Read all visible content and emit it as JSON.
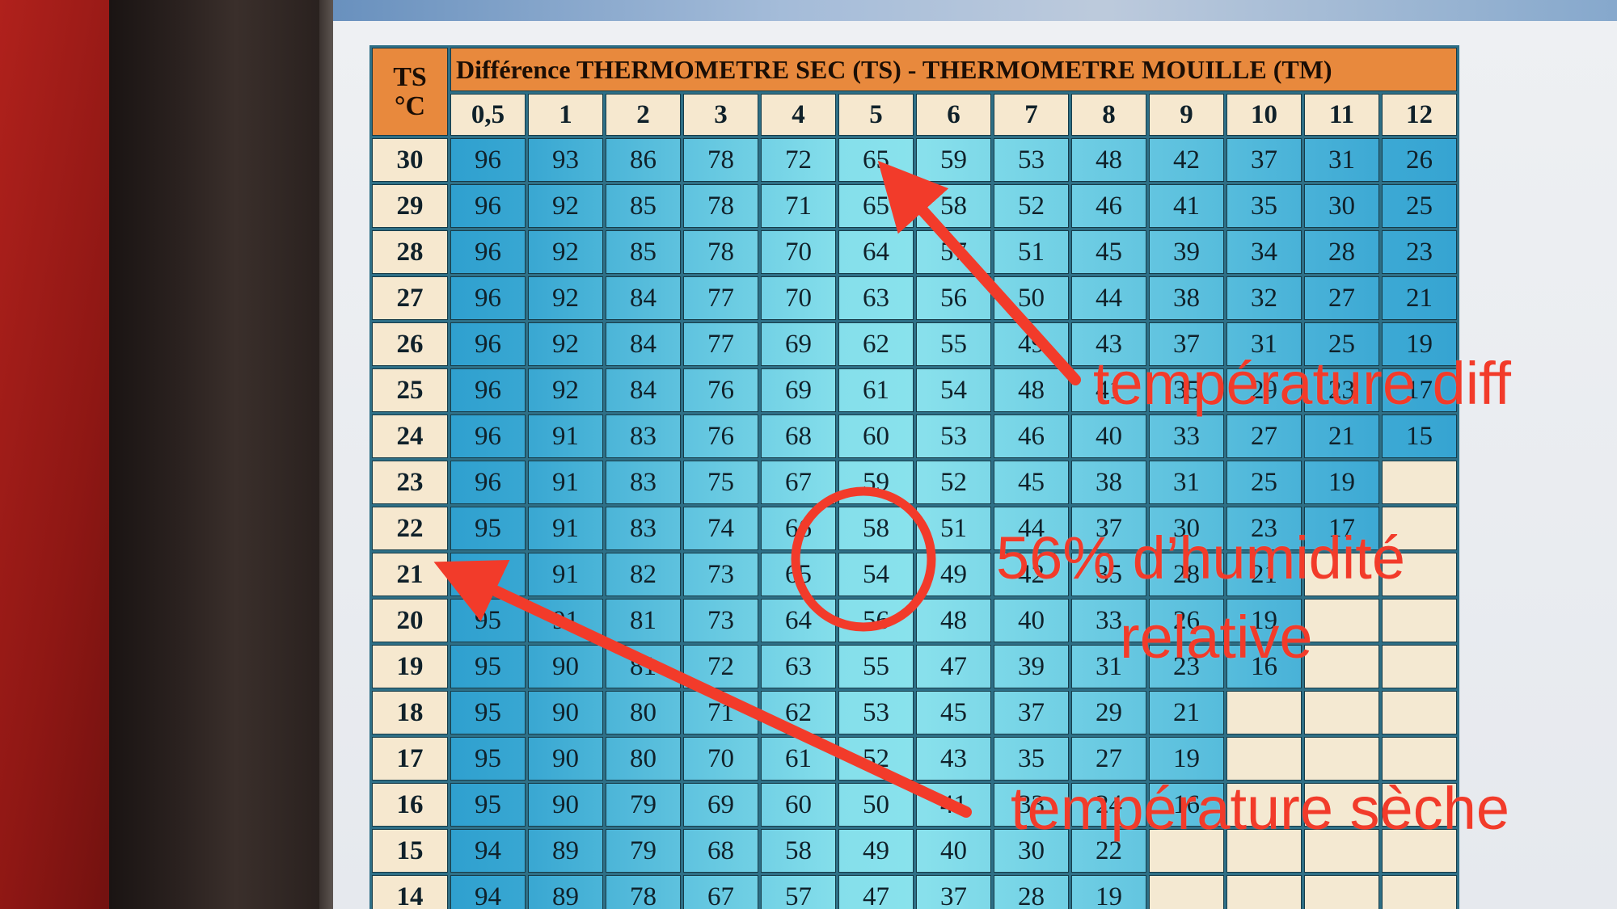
{
  "table": {
    "ts_header": [
      "TS",
      "°C"
    ],
    "diff_header": "Différence THERMOMETRE SEC (TS) - THERMOMETRE MOUILLE  (TM)",
    "columns": [
      "0,5",
      "1",
      "2",
      "3",
      "4",
      "5",
      "6",
      "7",
      "8",
      "9",
      "10",
      "11",
      "12"
    ],
    "rows": [
      {
        "ts": "30",
        "values": [
          "96",
          "93",
          "86",
          "78",
          "72",
          "65",
          "59",
          "53",
          "48",
          "42",
          "37",
          "31",
          "26"
        ]
      },
      {
        "ts": "29",
        "values": [
          "96",
          "92",
          "85",
          "78",
          "71",
          "65",
          "58",
          "52",
          "46",
          "41",
          "35",
          "30",
          "25"
        ]
      },
      {
        "ts": "28",
        "values": [
          "96",
          "92",
          "85",
          "78",
          "70",
          "64",
          "57",
          "51",
          "45",
          "39",
          "34",
          "28",
          "23"
        ]
      },
      {
        "ts": "27",
        "values": [
          "96",
          "92",
          "84",
          "77",
          "70",
          "63",
          "56",
          "50",
          "44",
          "38",
          "32",
          "27",
          "21"
        ]
      },
      {
        "ts": "26",
        "values": [
          "96",
          "92",
          "84",
          "77",
          "69",
          "62",
          "55",
          "49",
          "43",
          "37",
          "31",
          "25",
          "19"
        ]
      },
      {
        "ts": "25",
        "values": [
          "96",
          "92",
          "84",
          "76",
          "69",
          "61",
          "54",
          "48",
          "41",
          "35",
          "29",
          "23",
          "17"
        ]
      },
      {
        "ts": "24",
        "values": [
          "96",
          "91",
          "83",
          "76",
          "68",
          "60",
          "53",
          "46",
          "40",
          "33",
          "27",
          "21",
          "15"
        ]
      },
      {
        "ts": "23",
        "values": [
          "96",
          "91",
          "83",
          "75",
          "67",
          "59",
          "52",
          "45",
          "38",
          "31",
          "25",
          "19",
          ""
        ]
      },
      {
        "ts": "22",
        "values": [
          "95",
          "91",
          "83",
          "74",
          "66",
          "58",
          "51",
          "44",
          "37",
          "30",
          "23",
          "17",
          ""
        ]
      },
      {
        "ts": "21",
        "values": [
          "95",
          "91",
          "82",
          "73",
          "65",
          "54",
          "49",
          "42",
          "35",
          "28",
          "21",
          "",
          ""
        ]
      },
      {
        "ts": "20",
        "values": [
          "95",
          "91",
          "81",
          "73",
          "64",
          "56",
          "48",
          "40",
          "33",
          "26",
          "19",
          "",
          ""
        ]
      },
      {
        "ts": "19",
        "values": [
          "95",
          "90",
          "81",
          "72",
          "63",
          "55",
          "47",
          "39",
          "31",
          "23",
          "16",
          "",
          ""
        ]
      },
      {
        "ts": "18",
        "values": [
          "95",
          "90",
          "80",
          "71",
          "62",
          "53",
          "45",
          "37",
          "29",
          "21",
          "",
          "",
          ""
        ]
      },
      {
        "ts": "17",
        "values": [
          "95",
          "90",
          "80",
          "70",
          "61",
          "52",
          "43",
          "35",
          "27",
          "19",
          "",
          "",
          ""
        ]
      },
      {
        "ts": "16",
        "values": [
          "95",
          "90",
          "79",
          "69",
          "60",
          "50",
          "41",
          "33",
          "24",
          "16",
          "",
          "",
          ""
        ]
      },
      {
        "ts": "15",
        "values": [
          "94",
          "89",
          "79",
          "68",
          "58",
          "49",
          "40",
          "30",
          "22",
          "",
          "",
          "",
          ""
        ]
      },
      {
        "ts": "14",
        "values": [
          "94",
          "89",
          "78",
          "67",
          "57",
          "47",
          "37",
          "28",
          "19",
          "",
          "",
          "",
          ""
        ]
      }
    ]
  },
  "annotations": {
    "label_diff": "température diff",
    "label_humidity_line1": "56% d’humidité",
    "label_humidity_line2": "relative",
    "label_dry": "température sèche",
    "color": "#f23b2a"
  },
  "colors": {
    "header_orange": "#e8893d",
    "header_cream": "#f6e8cf",
    "cell_gradient": [
      "#2fa0cf",
      "#8fe6ee",
      "#36a4d2"
    ]
  }
}
